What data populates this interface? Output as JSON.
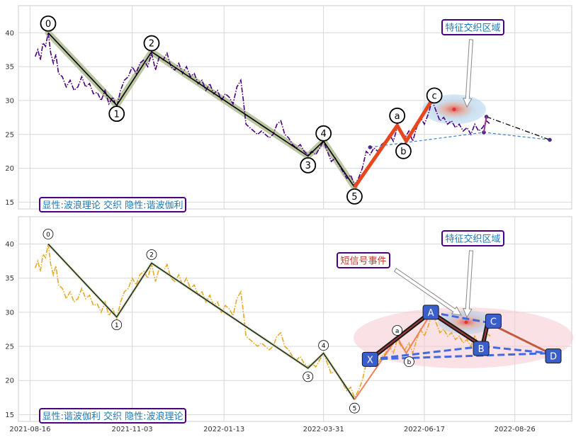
{
  "colors": {
    "price_top": "#4b0082",
    "price_bottom": "#e9a825",
    "elliott_line": "#000000",
    "elliott_band": "#a9b98a",
    "impulse_red": "#e8461c",
    "callout_border": "#4b0082",
    "callout_text_blue": "#1f77b4",
    "callout_text_red": "#c0392b",
    "harmonic_box": "#3a5fcd",
    "harmonic_dash": "#4169e1"
  },
  "chart_data": [
    {
      "type": "line",
      "panel": "top",
      "ylim": [
        14,
        44
      ],
      "yticks": [
        15,
        20,
        25,
        30,
        35,
        40
      ],
      "grid": true,
      "price_series": [
        {
          "x": "2021-08-20",
          "y": 36.5
        },
        {
          "x": "2021-08-22",
          "y": 37.5
        },
        {
          "x": "2021-08-24",
          "y": 36.0
        },
        {
          "x": "2021-08-26",
          "y": 38.5
        },
        {
          "x": "2021-08-28",
          "y": 38.0
        },
        {
          "x": "2021-08-30",
          "y": 40.0
        },
        {
          "x": "2021-09-01",
          "y": 37.0
        },
        {
          "x": "2021-09-03",
          "y": 35.5
        },
        {
          "x": "2021-09-05",
          "y": 36.8
        },
        {
          "x": "2021-09-07",
          "y": 34.0
        },
        {
          "x": "2021-09-10",
          "y": 33.5
        },
        {
          "x": "2021-09-13",
          "y": 32.0
        },
        {
          "x": "2021-09-16",
          "y": 33.0
        },
        {
          "x": "2021-09-19",
          "y": 31.5
        },
        {
          "x": "2021-09-22",
          "y": 32.0
        },
        {
          "x": "2021-09-25",
          "y": 33.5
        },
        {
          "x": "2021-09-28",
          "y": 32.0
        },
        {
          "x": "2021-10-01",
          "y": 32.5
        },
        {
          "x": "2021-10-04",
          "y": 31.0
        },
        {
          "x": "2021-10-07",
          "y": 31.2
        },
        {
          "x": "2021-10-10",
          "y": 30.0
        },
        {
          "x": "2021-10-13",
          "y": 31.5
        },
        {
          "x": "2021-10-16",
          "y": 29.5
        },
        {
          "x": "2021-10-19",
          "y": 30.5
        },
        {
          "x": "2021-10-22",
          "y": 29.0
        },
        {
          "x": "2021-10-25",
          "y": 31.5
        },
        {
          "x": "2021-10-28",
          "y": 33.0
        },
        {
          "x": "2021-10-31",
          "y": 33.5
        },
        {
          "x": "2021-11-03",
          "y": 35.0
        },
        {
          "x": "2021-11-06",
          "y": 34.0
        },
        {
          "x": "2021-11-09",
          "y": 35.5
        },
        {
          "x": "2021-11-12",
          "y": 36.0
        },
        {
          "x": "2021-11-15",
          "y": 35.0
        },
        {
          "x": "2021-11-18",
          "y": 37.0
        },
        {
          "x": "2021-11-21",
          "y": 34.5
        },
        {
          "x": "2021-11-24",
          "y": 36.5
        },
        {
          "x": "2021-11-27",
          "y": 36.0
        },
        {
          "x": "2021-11-30",
          "y": 37.0
        },
        {
          "x": "2021-12-03",
          "y": 35.0
        },
        {
          "x": "2021-12-06",
          "y": 34.5
        },
        {
          "x": "2021-12-09",
          "y": 35.5
        },
        {
          "x": "2021-12-12",
          "y": 34.0
        },
        {
          "x": "2021-12-15",
          "y": 35.0
        },
        {
          "x": "2021-12-18",
          "y": 33.5
        },
        {
          "x": "2021-12-21",
          "y": 34.0
        },
        {
          "x": "2021-12-24",
          "y": 32.5
        },
        {
          "x": "2021-12-27",
          "y": 33.0
        },
        {
          "x": "2021-12-30",
          "y": 31.5
        },
        {
          "x": "2022-01-02",
          "y": 32.5
        },
        {
          "x": "2022-01-05",
          "y": 31.0
        },
        {
          "x": "2022-01-08",
          "y": 31.5
        },
        {
          "x": "2022-01-11",
          "y": 30.0
        },
        {
          "x": "2022-01-14",
          "y": 31.0
        },
        {
          "x": "2022-01-17",
          "y": 30.5
        },
        {
          "x": "2022-01-20",
          "y": 29.5
        },
        {
          "x": "2022-01-23",
          "y": 32.0
        },
        {
          "x": "2022-01-26",
          "y": 33.0
        },
        {
          "x": "2022-01-28",
          "y": 30.0
        },
        {
          "x": "2022-01-30",
          "y": 26.5
        },
        {
          "x": "2022-02-02",
          "y": 26.0
        },
        {
          "x": "2022-02-05",
          "y": 25.5
        },
        {
          "x": "2022-02-08",
          "y": 25.0
        },
        {
          "x": "2022-02-11",
          "y": 25.5
        },
        {
          "x": "2022-02-14",
          "y": 25.0
        },
        {
          "x": "2022-02-17",
          "y": 24.5
        },
        {
          "x": "2022-02-20",
          "y": 25.0
        },
        {
          "x": "2022-02-23",
          "y": 26.5
        },
        {
          "x": "2022-02-26",
          "y": 27.0
        },
        {
          "x": "2022-03-01",
          "y": 25.0
        },
        {
          "x": "2022-03-04",
          "y": 24.5
        },
        {
          "x": "2022-03-07",
          "y": 23.5
        },
        {
          "x": "2022-03-10",
          "y": 23.0
        },
        {
          "x": "2022-03-13",
          "y": 23.5
        },
        {
          "x": "2022-03-16",
          "y": 22.5
        },
        {
          "x": "2022-03-19",
          "y": 22.0
        },
        {
          "x": "2022-03-22",
          "y": 22.5
        },
        {
          "x": "2022-03-25",
          "y": 22.0
        },
        {
          "x": "2022-03-28",
          "y": 23.0
        },
        {
          "x": "2022-03-31",
          "y": 24.0
        },
        {
          "x": "2022-04-03",
          "y": 22.5
        },
        {
          "x": "2022-04-06",
          "y": 21.0
        },
        {
          "x": "2022-04-09",
          "y": 21.5
        },
        {
          "x": "2022-04-12",
          "y": 20.5
        },
        {
          "x": "2022-04-15",
          "y": 19.5
        },
        {
          "x": "2022-04-18",
          "y": 18.5
        },
        {
          "x": "2022-04-21",
          "y": 19.0
        },
        {
          "x": "2022-04-24",
          "y": 17.5
        },
        {
          "x": "2022-04-27",
          "y": 18.5
        },
        {
          "x": "2022-04-30",
          "y": 20.0
        },
        {
          "x": "2022-05-03",
          "y": 22.5
        },
        {
          "x": "2022-05-06",
          "y": 22.0
        },
        {
          "x": "2022-05-09",
          "y": 23.0
        },
        {
          "x": "2022-05-12",
          "y": 22.5
        },
        {
          "x": "2022-05-15",
          "y": 23.5
        },
        {
          "x": "2022-05-18",
          "y": 24.0
        },
        {
          "x": "2022-05-21",
          "y": 25.0
        },
        {
          "x": "2022-05-24",
          "y": 24.0
        },
        {
          "x": "2022-05-27",
          "y": 26.0
        },
        {
          "x": "2022-05-30",
          "y": 25.0
        },
        {
          "x": "2022-06-02",
          "y": 24.5
        },
        {
          "x": "2022-06-05",
          "y": 25.5
        },
        {
          "x": "2022-06-08",
          "y": 24.0
        },
        {
          "x": "2022-06-11",
          "y": 26.0
        },
        {
          "x": "2022-06-14",
          "y": 27.5
        },
        {
          "x": "2022-06-17",
          "y": 26.5
        },
        {
          "x": "2022-06-20",
          "y": 28.0
        },
        {
          "x": "2022-06-23",
          "y": 30.0
        },
        {
          "x": "2022-06-26",
          "y": 28.5
        },
        {
          "x": "2022-06-29",
          "y": 27.0
        },
        {
          "x": "2022-07-02",
          "y": 27.5
        },
        {
          "x": "2022-07-05",
          "y": 26.5
        },
        {
          "x": "2022-07-08",
          "y": 27.0
        },
        {
          "x": "2022-07-11",
          "y": 26.0
        },
        {
          "x": "2022-07-14",
          "y": 26.5
        },
        {
          "x": "2022-07-17",
          "y": 25.5
        },
        {
          "x": "2022-07-20",
          "y": 26.0
        },
        {
          "x": "2022-07-23",
          "y": 25.0
        },
        {
          "x": "2022-07-26",
          "y": 26.5
        },
        {
          "x": "2022-07-29",
          "y": 25.5
        },
        {
          "x": "2022-08-01",
          "y": 26.0
        },
        {
          "x": "2022-08-04",
          "y": 27.0
        },
        {
          "x": "2022-08-07",
          "y": 26.5
        }
      ],
      "elliott_waves": [
        {
          "label": "0",
          "x": "2021-08-30",
          "y": 40.0
        },
        {
          "label": "1",
          "x": "2021-10-22",
          "y": 29.3
        },
        {
          "label": "2",
          "x": "2021-11-18",
          "y": 37.2
        },
        {
          "label": "3",
          "x": "2022-03-19",
          "y": 21.8
        },
        {
          "label": "4",
          "x": "2022-03-31",
          "y": 24.0
        },
        {
          "label": "5",
          "x": "2022-04-24",
          "y": 17.2
        },
        {
          "label": "a",
          "x": "2022-05-27",
          "y": 26.3
        },
        {
          "label": "b",
          "x": "2022-06-03",
          "y": 24.0
        },
        {
          "label": "c",
          "x": "2022-06-22",
          "y": 29.8
        }
      ],
      "projection": [
        {
          "x": "2022-05-06",
          "y": 23.1
        },
        {
          "x": "2022-08-02",
          "y": 25.3
        },
        {
          "x": "2022-09-22",
          "y": 24.2
        }
      ],
      "projection2": [
        {
          "x": "2022-08-04",
          "y": 27.6
        },
        {
          "x": "2022-09-22",
          "y": 24.2
        }
      ],
      "zone": {
        "x": "2022-07-10",
        "y": 28.7
      },
      "callout": "特征交织区域",
      "panel_caption": "显性:波浪理论 交织 隐性:谐波伽利"
    },
    {
      "type": "line",
      "panel": "bottom",
      "ylim": [
        14,
        44
      ],
      "yticks": [
        15,
        20,
        25,
        30,
        35,
        40
      ],
      "xticks": [
        "2021-08-16",
        "2021-11-03",
        "2022-01-13",
        "2022-03-31",
        "2022-06-17",
        "2022-08-26"
      ],
      "grid": true,
      "harmonic_points": [
        {
          "label": "X",
          "x": "2022-05-06",
          "y": 23.1
        },
        {
          "label": "A",
          "x": "2022-06-22",
          "y": 30.0
        },
        {
          "label": "B",
          "x": "2022-08-01",
          "y": 25.0
        },
        {
          "label": "C",
          "x": "2022-08-05",
          "y": 28.5
        },
        {
          "label": "D",
          "x": "2022-09-22",
          "y": 24.0
        }
      ],
      "callout_zone": "特征交织区域",
      "callout_event": "短信号事件",
      "panel_caption": "显性:谐波伽利 交织 隐性:波浪理论"
    }
  ]
}
